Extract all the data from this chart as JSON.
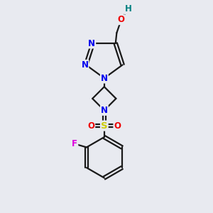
{
  "background_color": "#e8eaf0",
  "atom_colors": {
    "C": "#1a1a1a",
    "N": "#0000ee",
    "O": "#ee0000",
    "S": "#cccc00",
    "F": "#dd00dd",
    "H": "#008080"
  },
  "figsize": [
    3.0,
    3.0
  ],
  "dpi": 100,
  "lw": 1.6,
  "fs": 8.5
}
